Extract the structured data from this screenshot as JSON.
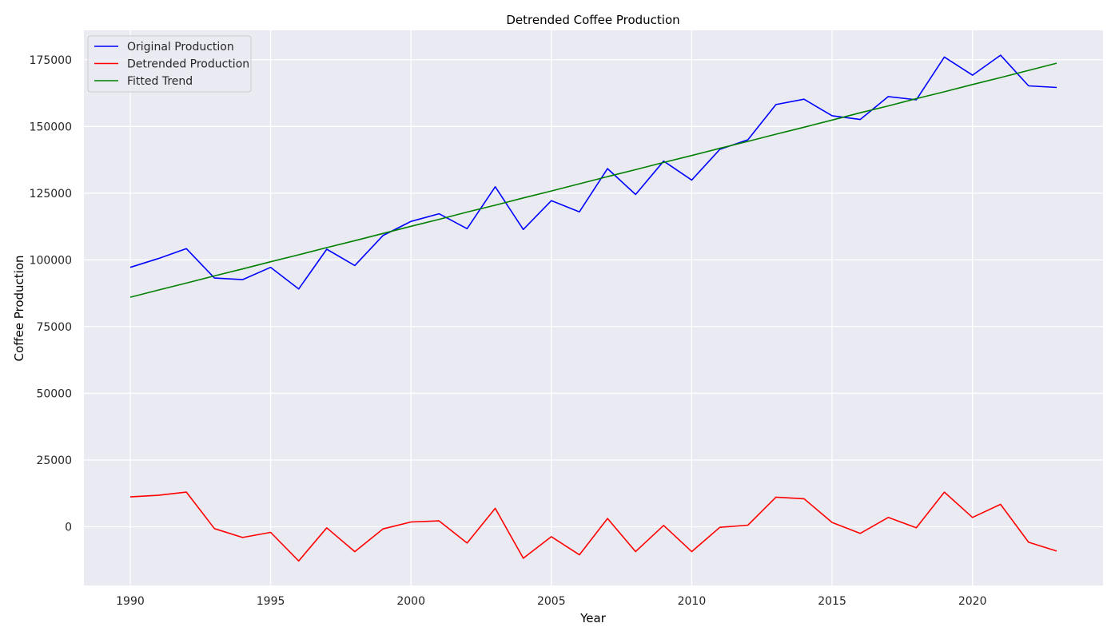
{
  "chart_data": {
    "type": "line",
    "title": "Detrended Coffee Production",
    "xlabel": "Year",
    "ylabel": "Coffee Production",
    "xlim": [
      1988.35,
      1924.65
    ],
    "ylim": [
      -22000,
      186000
    ],
    "xticks": [
      1990,
      1995,
      2000,
      2005,
      2010,
      2015,
      2020
    ],
    "yticks": [
      0,
      25000,
      50000,
      75000,
      100000,
      125000,
      150000,
      175000
    ],
    "grid": true,
    "legend_position": "top-left",
    "x": [
      1990,
      1991,
      1992,
      1993,
      1994,
      1995,
      1996,
      1997,
      1998,
      1999,
      2000,
      2001,
      2002,
      2003,
      2004,
      2005,
      2006,
      2007,
      2008,
      2009,
      2010,
      2011,
      2012,
      2013,
      2014,
      2015,
      2016,
      2017,
      2018,
      2019,
      2020,
      2021,
      2022,
      2023
    ],
    "series": [
      {
        "name": "Original Production",
        "color": "#0000ff",
        "values": [
          97200,
          100500,
          104200,
          93200,
          92600,
          97200,
          89100,
          104000,
          97900,
          109100,
          114400,
          117300,
          111700,
          127400,
          111400,
          122200,
          118000,
          134200,
          124500,
          137000,
          129900,
          141400,
          145000,
          158200,
          160200,
          154000,
          152600,
          161200,
          160000,
          176000,
          169200,
          176700,
          165200,
          164600
        ]
      },
      {
        "name": "Detrended Production",
        "color": "#ff0000",
        "values": [
          11200,
          11800,
          13000,
          -700,
          -4000,
          -2100,
          -12800,
          -400,
          -9300,
          -800,
          1800,
          2200,
          -6100,
          6900,
          -11800,
          -3700,
          -10500,
          3100,
          -9300,
          500,
          -9300,
          -200,
          600,
          11100,
          10500,
          1600,
          -2500,
          3500,
          -400,
          13000,
          3500,
          8400,
          -5800,
          -9100
        ]
      },
      {
        "name": "Fitted Trend",
        "color": "#008000",
        "values": [
          86000,
          88700,
          91300,
          94000,
          96600,
          99300,
          101900,
          104600,
          107200,
          109900,
          112600,
          115200,
          117900,
          120500,
          123200,
          125800,
          128500,
          131200,
          133800,
          136500,
          139100,
          141800,
          144400,
          147100,
          149700,
          152400,
          155100,
          157700,
          160400,
          163000,
          165700,
          168300,
          171000,
          173700
        ]
      }
    ]
  }
}
